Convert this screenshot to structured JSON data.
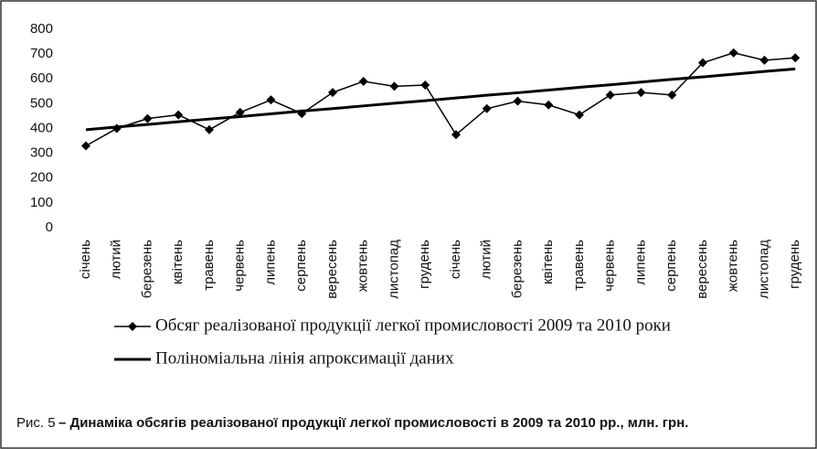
{
  "chart_data": {
    "type": "line",
    "categories": [
      "січень",
      "лютий",
      "березень",
      "квітень",
      "травень",
      "червень",
      "липень",
      "серпень",
      "вересень",
      "жовтень",
      "листопад",
      "грудень",
      "січень",
      "лютий",
      "березень",
      "квітень",
      "травень",
      "червень",
      "липень",
      "серпень",
      "вересень",
      "жовтень",
      "листопад",
      "грудень"
    ],
    "series": [
      {
        "name": "Обсяг реалізованої продукції легкої промисловості 2009 та 2010 роки",
        "color": "#000000",
        "marker": "diamond",
        "values": [
          330,
          400,
          440,
          455,
          395,
          465,
          515,
          460,
          545,
          590,
          570,
          575,
          375,
          480,
          510,
          495,
          455,
          535,
          545,
          535,
          665,
          705,
          675,
          685
        ]
      },
      {
        "name": "Поліноміальна лінія апроксимації даних",
        "color": "#000000",
        "marker": "none",
        "values": [
          395,
          406,
          416,
          427,
          438,
          448,
          459,
          470,
          480,
          491,
          502,
          512,
          523,
          534,
          544,
          555,
          566,
          576,
          587,
          598,
          608,
          619,
          630,
          640
        ]
      }
    ],
    "ylim": [
      0,
      800
    ],
    "yticks": [
      0,
      100,
      200,
      300,
      400,
      500,
      600,
      700,
      800
    ],
    "grid": false,
    "legend": "bottom",
    "caption_label": "Рис. 5",
    "caption_text": "– Динаміка обсягів реалізованої продукції легкої промисловості в 2009 та 2010 рр.,  млн. грн."
  }
}
